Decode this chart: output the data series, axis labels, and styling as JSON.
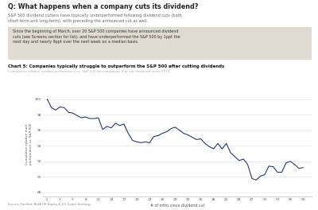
{
  "title_main": "Q: What happens when a company cuts its dividend?",
  "subtitle_main": "S&P 500 dividend cutters have typically underperformed following dividend cuts (both\nshort-term and long-term), with preceding the announced cut as well.",
  "highlight_text": "Since the beginning of March, over 20 S&P 500 companies have announced dividend\ncuts (see Screens section for list), and have underperformed the S&P 500 by 1ppt the\nnext day and nearly 9ppt over the next week on a median basis.",
  "chart_title": "Chart 5: Companies typically struggle to outperform the S&P 500 after cutting dividends",
  "chart_subtitle": "Cumulative relative median performance vs. S&P 500 for companies that cut dividends since 2010",
  "source": "Source: FactSet, BofA US Equity & US Quant Strategy",
  "xlabel": "# of mths since dividend cut",
  "ylabel": "Cumulative relative med.\nperformance vs. S&P 500",
  "line_color": "#1a2d6b",
  "bg_color": "#ffffff",
  "highlight_bg": "#e0dbd0",
  "xtick_labels": [
    "-1",
    "2",
    "5",
    "8",
    "11",
    "14",
    "17",
    "20",
    "23",
    "26",
    "29",
    "32",
    "35",
    "38",
    "41",
    "44",
    "47",
    "50",
    "53",
    "56",
    "59"
  ],
  "xtick_values": [
    -1,
    2,
    5,
    8,
    11,
    14,
    17,
    20,
    23,
    26,
    29,
    32,
    35,
    38,
    41,
    44,
    47,
    50,
    53,
    56,
    59
  ],
  "ylim": [
    87.5,
    101.0
  ],
  "xlim": [
    -2,
    61
  ],
  "x_data": [
    -1,
    0,
    1,
    2,
    3,
    4,
    5,
    6,
    7,
    8,
    9,
    10,
    11,
    12,
    13,
    14,
    15,
    16,
    17,
    18,
    19,
    20,
    21,
    22,
    23,
    24,
    25,
    26,
    27,
    28,
    29,
    30,
    31,
    32,
    33,
    34,
    35,
    36,
    37,
    38,
    39,
    40,
    41,
    42,
    43,
    44,
    45,
    46,
    47,
    48,
    49,
    50,
    51,
    52,
    53,
    54,
    55,
    56,
    57,
    58,
    59
  ],
  "y_data": [
    100.0,
    98.9,
    98.6,
    99.0,
    98.9,
    98.3,
    98.2,
    97.9,
    97.6,
    97.7,
    97.5,
    97.5,
    97.6,
    96.1,
    96.5,
    96.3,
    96.9,
    96.6,
    96.8,
    95.6,
    94.7,
    94.5,
    94.4,
    94.5,
    94.4,
    95.2,
    95.3,
    95.6,
    95.8,
    96.2,
    96.4,
    96.0,
    95.6,
    95.4,
    95.1,
    94.8,
    94.9,
    94.3,
    93.9,
    93.6,
    94.3,
    93.6,
    94.3,
    93.1,
    92.6,
    92.1,
    92.3,
    91.6,
    89.8,
    89.6,
    90.1,
    90.3,
    91.4,
    91.3,
    90.6,
    90.6,
    91.8,
    92.0,
    91.6,
    91.1,
    91.2
  ]
}
